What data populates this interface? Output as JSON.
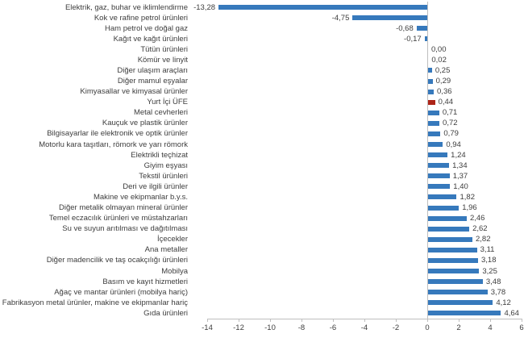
{
  "chart_data": {
    "type": "bar",
    "orientation": "horizontal",
    "title": "",
    "xlabel": "",
    "ylabel": "",
    "xlim": [
      -14,
      6
    ],
    "x_ticks": [
      -14,
      -12,
      -10,
      -8,
      -6,
      -4,
      -2,
      0,
      2,
      4,
      6
    ],
    "x_tick_labels": [
      "-14",
      "-12",
      "-10",
      "-8",
      "-6",
      "-4",
      "-2",
      "0",
      "2",
      "4",
      "6"
    ],
    "grid": false,
    "legend": false,
    "categories": [
      "Elektrik, gaz, buhar ve iklimlendirme",
      "Kok ve rafine petrol ürünleri",
      "Ham petrol ve doğal gaz",
      "Kağıt ve kağıt ürünleri",
      "Tütün ürünleri",
      "Kömür ve linyit",
      "Diğer ulaşım araçları",
      "Diğer mamul eşyalar",
      "Kimyasallar ve kimyasal ürünler",
      "Yurt İçi ÜFE",
      "Metal cevherleri",
      "Kauçuk ve plastik ürünler",
      "Bilgisayarlar ile elektronik ve optik ürünler",
      "Motorlu kara taşıtları, römork ve yarı römork",
      "Elektrikli teçhizat",
      "Giyim eşyası",
      "Tekstil ürünleri",
      "Deri ve ilgili ürünler",
      "Makine ve ekipmanlar b.y.s.",
      "Diğer metalik olmayan mineral ürünler",
      "Temel eczacılık ürünleri ve müstahzarları",
      "Su ve suyun arıtılması ve dağıtılması",
      "İçecekler",
      "Ana metaller",
      "Diğer madencilik ve taş ocakçılığı ürünleri",
      "Mobilya",
      "Basım ve kayıt hizmetleri",
      "Ağaç ve mantar ürünleri (mobilya hariç)",
      "Fabrikasyon metal ürünler, makine ve ekipmanlar hariç",
      "Gıda ürünleri"
    ],
    "values": [
      -13.28,
      -4.75,
      -0.68,
      -0.17,
      0.0,
      0.02,
      0.25,
      0.29,
      0.36,
      0.44,
      0.71,
      0.72,
      0.79,
      0.94,
      1.24,
      1.34,
      1.37,
      1.4,
      1.82,
      1.96,
      2.46,
      2.62,
      2.82,
      3.11,
      3.18,
      3.25,
      3.48,
      3.78,
      4.12,
      4.64
    ],
    "value_labels": [
      "-13,28",
      "-4,75",
      "-0,68",
      "-0,17",
      "0,00",
      "0,02",
      "0,25",
      "0,29",
      "0,36",
      "0,44",
      "0,71",
      "0,72",
      "0,79",
      "0,94",
      "1,24",
      "1,34",
      "1,37",
      "1,40",
      "1,82",
      "1,96",
      "2,46",
      "2,62",
      "2,82",
      "3,11",
      "3,18",
      "3,25",
      "3,48",
      "3,78",
      "4,12",
      "4,64"
    ],
    "highlight_index": 9,
    "highlight_category": "Yurt İçi ÜFE",
    "colors": {
      "bar": "#3679bc",
      "highlight_bar": "#ad2418",
      "axis": "#bfbfbf",
      "text": "#3d3d3d",
      "background": "#ffffff"
    }
  }
}
